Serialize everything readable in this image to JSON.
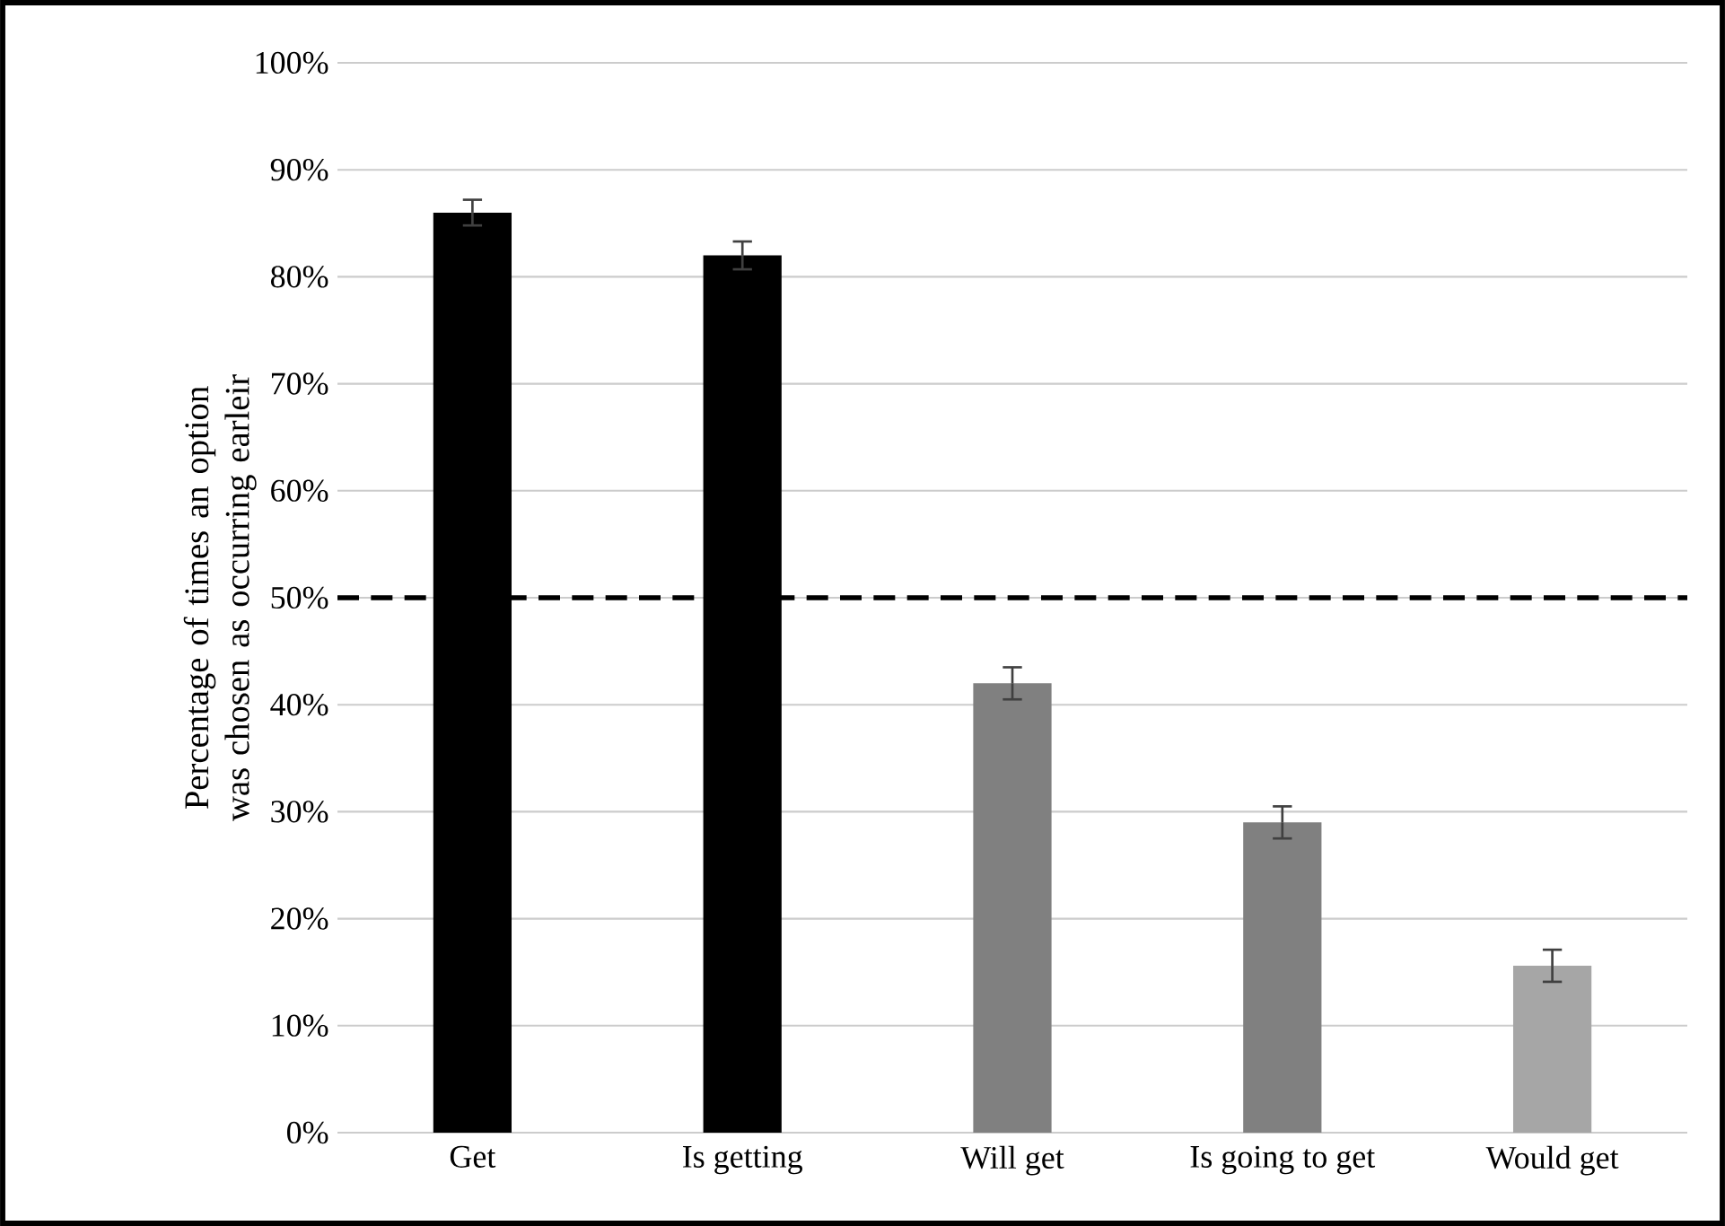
{
  "chart_data": {
    "type": "bar",
    "ylabel": "Percentage of times an option was chosen as occurring earleir",
    "categories": [
      "Get",
      "Is getting",
      "Will get",
      "Is going to get",
      "Would get"
    ],
    "values": [
      86,
      82,
      42,
      29,
      15.6
    ],
    "errors": [
      1.2,
      1.3,
      1.5,
      1.5,
      1.5
    ],
    "colors": [
      "#000000",
      "#000000",
      "#808080",
      "#808080",
      "#a6a6a6"
    ],
    "ylim": [
      0,
      100
    ],
    "yticks": [
      {
        "value": 0,
        "label": "0%"
      },
      {
        "value": 10,
        "label": "10%"
      },
      {
        "value": 20,
        "label": "20%"
      },
      {
        "value": 30,
        "label": "30%"
      },
      {
        "value": 40,
        "label": "40%"
      },
      {
        "value": 50,
        "label": "50%"
      },
      {
        "value": 60,
        "label": "60%"
      },
      {
        "value": 70,
        "label": "70%"
      },
      {
        "value": 80,
        "label": "80%"
      },
      {
        "value": 90,
        "label": "90%"
      },
      {
        "value": 100,
        "label": "100%"
      }
    ],
    "grid": "y",
    "ref_lines": [
      {
        "axis": "y",
        "value": 50,
        "line_style": "dashed",
        "color": "#000000"
      }
    ]
  }
}
